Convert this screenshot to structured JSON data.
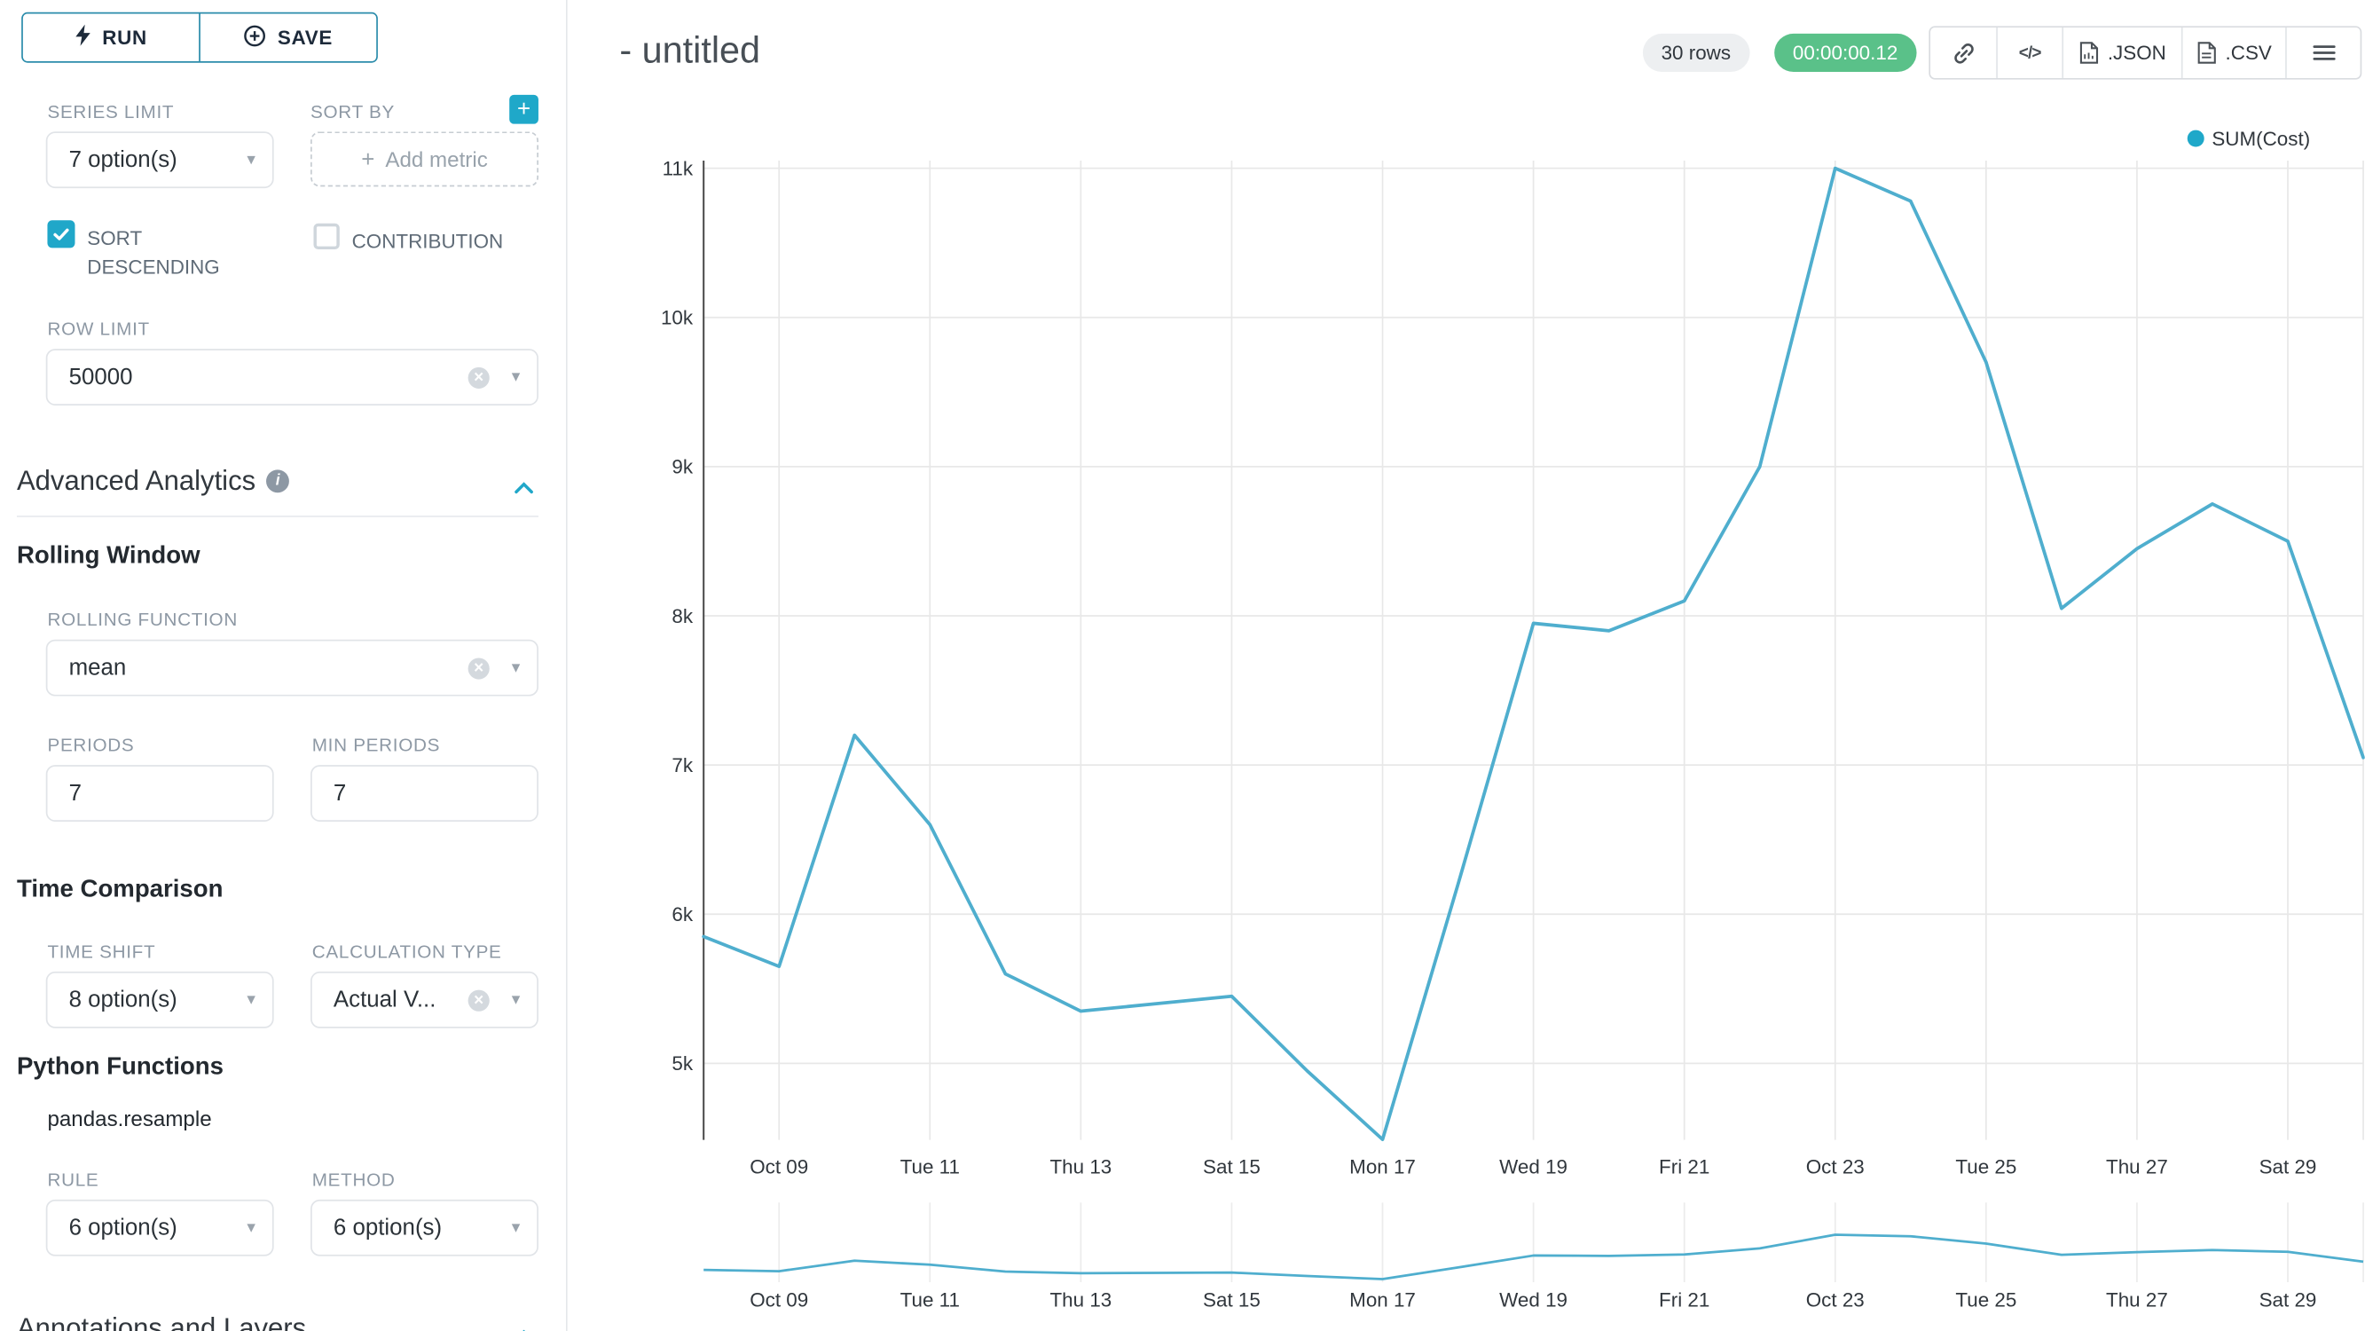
{
  "toolbar": {
    "run": "RUN",
    "save": "SAVE"
  },
  "sidebar": {
    "series_limit_label": "SERIES LIMIT",
    "series_limit_value": "7 option(s)",
    "sort_by_label": "SORT BY",
    "add_metric_placeholder": "Add metric",
    "sort_descending_label": "SORT DESCENDING",
    "sort_descending_checked": true,
    "contribution_label": "CONTRIBUTION",
    "contribution_checked": false,
    "row_limit_label": "ROW LIMIT",
    "row_limit_value": "50000",
    "advanced_analytics_title": "Advanced Analytics",
    "rolling_window_title": "Rolling Window",
    "rolling_function_label": "ROLLING FUNCTION",
    "rolling_function_value": "mean",
    "periods_label": "PERIODS",
    "periods_value": "7",
    "min_periods_label": "MIN PERIODS",
    "min_periods_value": "7",
    "time_comparison_title": "Time Comparison",
    "time_shift_label": "TIME SHIFT",
    "time_shift_value": "8 option(s)",
    "calculation_type_label": "CALCULATION TYPE",
    "calculation_type_value": "Actual V...",
    "python_functions_title": "Python Functions",
    "pandas_resample_label": "pandas.resample",
    "rule_label": "RULE",
    "rule_value": "6 option(s)",
    "method_label": "METHOD",
    "method_value": "6 option(s)",
    "annotations_title": "Annotations and Layers"
  },
  "header": {
    "title": "- untitled",
    "rows_badge": "30 rows",
    "timer": "00:00:00.12",
    "code_label": "</>",
    "json_label": ".JSON",
    "csv_label": ".CSV"
  },
  "colors": {
    "accent": "#20A7C9",
    "timer_green": "#5AC189",
    "line": "#4FAECE",
    "legend_dot": "#1FA8C9"
  },
  "chart_data": {
    "type": "line",
    "title": "- untitled",
    "legend": [
      "SUM(Cost)"
    ],
    "legend_position": "top-right",
    "grid": true,
    "line_color": "#4FAECE",
    "dot_color": "#1FA8C9",
    "x": [
      "Oct 08",
      "Oct 09",
      "Oct 10",
      "Oct 11",
      "Oct 12",
      "Oct 13",
      "Oct 14",
      "Oct 15",
      "Oct 16",
      "Oct 17",
      "Oct 18",
      "Oct 19",
      "Oct 20",
      "Oct 21",
      "Oct 22",
      "Oct 23",
      "Oct 24",
      "Oct 25",
      "Oct 26",
      "Oct 27",
      "Oct 28",
      "Oct 29",
      "Oct 30"
    ],
    "series": [
      {
        "name": "SUM(Cost)",
        "values": [
          5850,
          5650,
          7200,
          6600,
          5600,
          5350,
          5400,
          5450,
          4950,
          4490,
          6200,
          7950,
          7900,
          8100,
          9000,
          11000,
          10780,
          9700,
          8050,
          8450,
          8750,
          8500,
          7050
        ]
      }
    ],
    "y_ticks": [
      {
        "label": "5k",
        "value": 5000
      },
      {
        "label": "6k",
        "value": 6000
      },
      {
        "label": "7k",
        "value": 7000
      },
      {
        "label": "8k",
        "value": 8000
      },
      {
        "label": "9k",
        "value": 9000
      },
      {
        "label": "10k",
        "value": 10000
      },
      {
        "label": "11k",
        "value": 11000
      }
    ],
    "x_ticks": [
      {
        "label": "Oct 09",
        "index": 1
      },
      {
        "label": "Tue 11",
        "index": 3
      },
      {
        "label": "Thu 13",
        "index": 5
      },
      {
        "label": "Sat 15",
        "index": 7
      },
      {
        "label": "Mon 17",
        "index": 9
      },
      {
        "label": "Wed 19",
        "index": 11
      },
      {
        "label": "Fri 21",
        "index": 13
      },
      {
        "label": "Oct 23",
        "index": 15
      },
      {
        "label": "Tue 25",
        "index": 17
      },
      {
        "label": "Thu 27",
        "index": 19
      },
      {
        "label": "Sat 29",
        "index": 21
      }
    ],
    "ylim": [
      4400,
      11100
    ],
    "mini_chart": true
  }
}
